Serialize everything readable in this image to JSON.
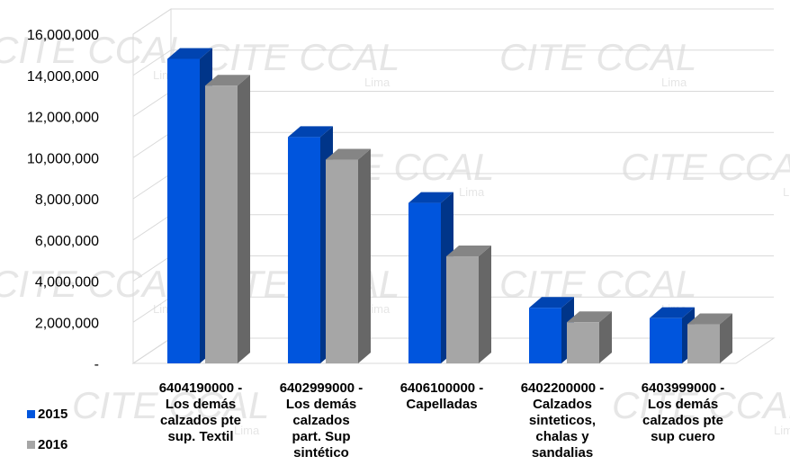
{
  "colors": {
    "series_2015": "#0055dd",
    "series_2016": "#a6a6a6",
    "grid": "#d9d9d9",
    "watermark": "#e6e6e6"
  },
  "watermark": {
    "text": "CITE CCAL",
    "sub": "Lima"
  },
  "chart_data": {
    "type": "bar",
    "style": "3d-clustered-column",
    "title": "",
    "xlabel": "",
    "ylabel": "",
    "ylim": [
      0,
      16000000
    ],
    "y_ticks": [
      "-",
      "2,000,000",
      "4,000,000",
      "6,000,000",
      "8,000,000",
      "10,000,000",
      "12,000,000",
      "14,000,000",
      "16,000,000"
    ],
    "grid": true,
    "legend_position": "bottom-left",
    "categories": [
      [
        "6404190000 -",
        "Los demás",
        "calzados pte",
        "sup. Textil"
      ],
      [
        "6402999000 -",
        "Los demás",
        "calzados",
        "part. Sup",
        "sintético"
      ],
      [
        "6406100000 -",
        "Capelladas"
      ],
      [
        "6402200000 -",
        "Calzados",
        "sinteticos,",
        "chalas y",
        "sandalias"
      ],
      [
        "6403999000 -",
        "Los demás",
        "calzados pte",
        "sup cuero"
      ]
    ],
    "series": [
      {
        "name": "2015",
        "values": [
          14800000,
          11000000,
          7800000,
          2700000,
          2200000
        ]
      },
      {
        "name": "2016",
        "values": [
          13500000,
          9900000,
          5200000,
          2000000,
          1900000
        ]
      }
    ]
  }
}
